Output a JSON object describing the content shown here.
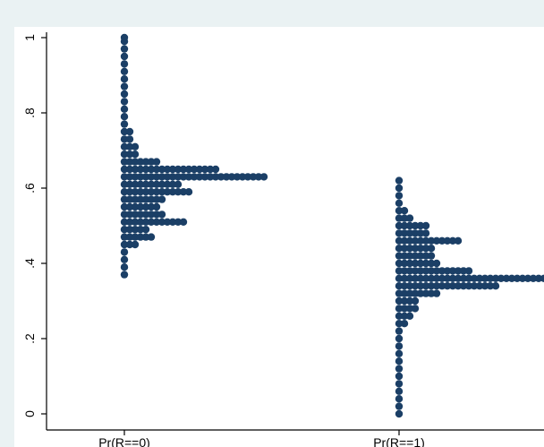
{
  "chart_data": {
    "type": "dotplot",
    "title": "",
    "xlabel": "",
    "ylabel": "",
    "ylim": [
      0,
      1
    ],
    "yticks": [
      {
        "value": 0,
        "label": "0"
      },
      {
        "value": 0.2,
        "label": ".2"
      },
      {
        "value": 0.4,
        "label": ".4"
      },
      {
        "value": 0.6,
        "label": ".6"
      },
      {
        "value": 0.8,
        "label": ".8"
      },
      {
        "value": 1,
        "label": "1"
      }
    ],
    "categories": [
      "Pr(R==0)",
      "Pr(R==1)"
    ],
    "bin_width": 0.02,
    "series": [
      {
        "bins": [
          {
            "y": 0.37,
            "count": 1
          },
          {
            "y": 0.39,
            "count": 1
          },
          {
            "y": 0.41,
            "count": 1
          },
          {
            "y": 0.43,
            "count": 1
          },
          {
            "y": 0.45,
            "count": 3
          },
          {
            "y": 0.47,
            "count": 6
          },
          {
            "y": 0.49,
            "count": 5
          },
          {
            "y": 0.51,
            "count": 12
          },
          {
            "y": 0.53,
            "count": 8
          },
          {
            "y": 0.55,
            "count": 7
          },
          {
            "y": 0.57,
            "count": 8
          },
          {
            "y": 0.59,
            "count": 13
          },
          {
            "y": 0.61,
            "count": 11
          },
          {
            "y": 0.63,
            "count": 27
          },
          {
            "y": 0.65,
            "count": 18
          },
          {
            "y": 0.67,
            "count": 7
          },
          {
            "y": 0.69,
            "count": 3
          },
          {
            "y": 0.71,
            "count": 3
          },
          {
            "y": 0.73,
            "count": 2
          },
          {
            "y": 0.75,
            "count": 2
          },
          {
            "y": 0.77,
            "count": 1
          },
          {
            "y": 0.79,
            "count": 1
          },
          {
            "y": 0.81,
            "count": 1
          },
          {
            "y": 0.83,
            "count": 1
          },
          {
            "y": 0.85,
            "count": 1
          },
          {
            "y": 0.87,
            "count": 1
          },
          {
            "y": 0.89,
            "count": 1
          },
          {
            "y": 0.91,
            "count": 1
          },
          {
            "y": 0.93,
            "count": 1
          },
          {
            "y": 0.95,
            "count": 1
          },
          {
            "y": 0.97,
            "count": 1
          },
          {
            "y": 0.99,
            "count": 1
          },
          {
            "y": 1.0,
            "count": 1
          }
        ]
      },
      {
        "bins": [
          {
            "y": 0.0,
            "count": 1
          },
          {
            "y": 0.02,
            "count": 1
          },
          {
            "y": 0.04,
            "count": 1
          },
          {
            "y": 0.06,
            "count": 1
          },
          {
            "y": 0.08,
            "count": 1
          },
          {
            "y": 0.1,
            "count": 1
          },
          {
            "y": 0.12,
            "count": 1
          },
          {
            "y": 0.14,
            "count": 1
          },
          {
            "y": 0.16,
            "count": 1
          },
          {
            "y": 0.18,
            "count": 1
          },
          {
            "y": 0.2,
            "count": 1
          },
          {
            "y": 0.22,
            "count": 1
          },
          {
            "y": 0.24,
            "count": 2
          },
          {
            "y": 0.26,
            "count": 3
          },
          {
            "y": 0.28,
            "count": 4
          },
          {
            "y": 0.3,
            "count": 4
          },
          {
            "y": 0.32,
            "count": 8
          },
          {
            "y": 0.34,
            "count": 19
          },
          {
            "y": 0.36,
            "count": 29
          },
          {
            "y": 0.38,
            "count": 14
          },
          {
            "y": 0.4,
            "count": 8
          },
          {
            "y": 0.42,
            "count": 7
          },
          {
            "y": 0.44,
            "count": 7
          },
          {
            "y": 0.46,
            "count": 12
          },
          {
            "y": 0.48,
            "count": 6
          },
          {
            "y": 0.5,
            "count": 6
          },
          {
            "y": 0.52,
            "count": 3
          },
          {
            "y": 0.54,
            "count": 2
          },
          {
            "y": 0.56,
            "count": 1
          },
          {
            "y": 0.58,
            "count": 1
          },
          {
            "y": 0.6,
            "count": 1
          },
          {
            "y": 0.62,
            "count": 1
          }
        ]
      }
    ],
    "grid": false,
    "dot_color": "#1b3f66",
    "axis_color": "#000000",
    "plot_background": "#ffffff",
    "outer_background": "#eaf2f3"
  }
}
